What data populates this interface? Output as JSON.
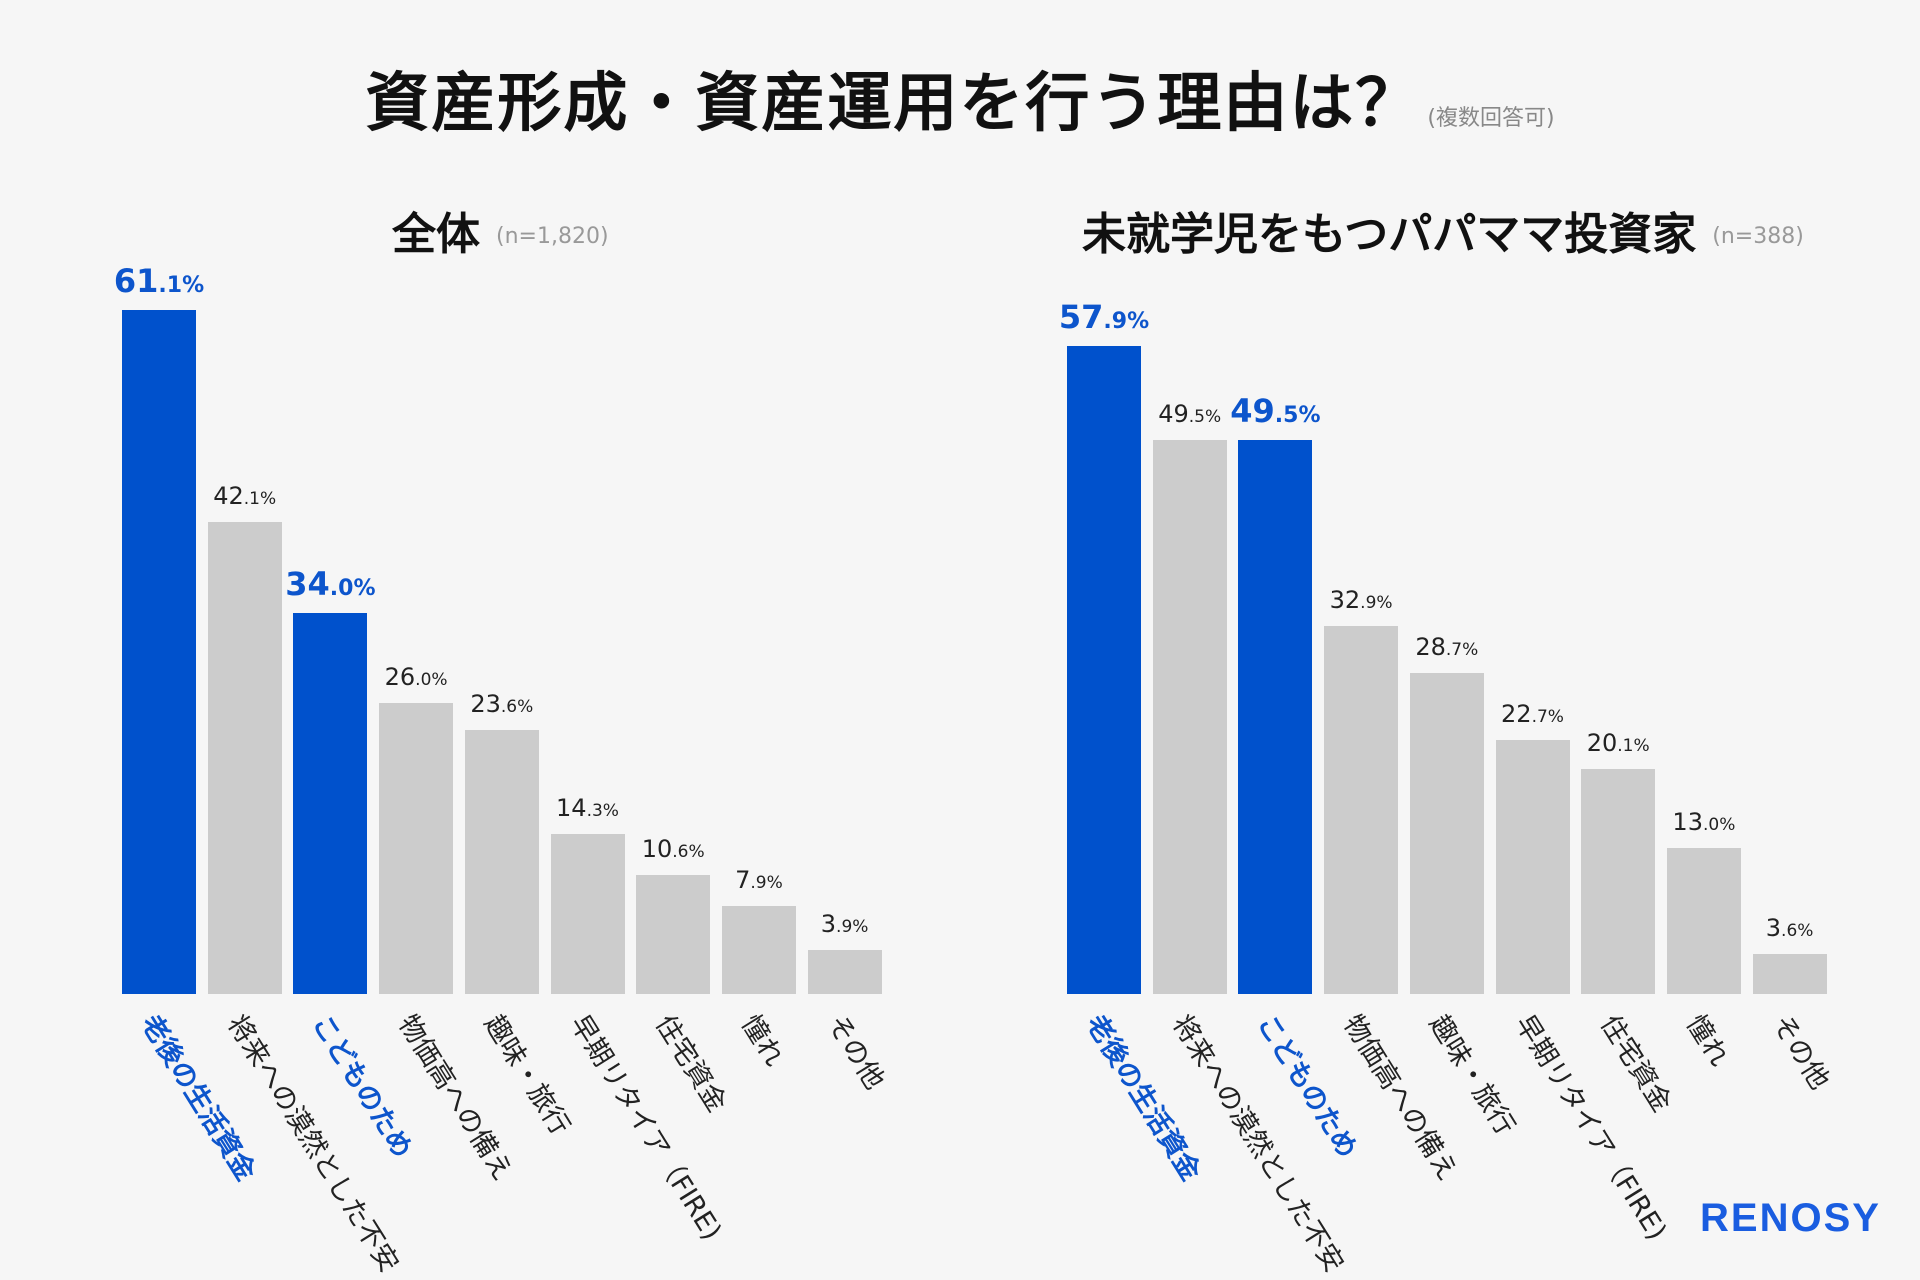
{
  "title": {
    "main": "資産形成・資産運用を行う理由は？",
    "note": "(複数回答可)"
  },
  "colors": {
    "highlight": "#0051cc",
    "normal": "#cccccc",
    "highlight_text": "#0d55cc"
  },
  "logo": "RENOSY",
  "chart_data": [
    {
      "type": "bar",
      "title": "全体",
      "subtitle": "(n=1,820)",
      "unit": "%",
      "categories": [
        "老後の生活資金",
        "将来への漠然とした不安",
        "こどものため",
        "物価高への備え",
        "趣味・旅行",
        "早期リタイア（FIRE)",
        "住宅資金",
        "憧れ",
        "その他"
      ],
      "values": [
        61.1,
        42.1,
        34.0,
        26.0,
        23.6,
        14.3,
        10.6,
        7.9,
        3.9
      ],
      "highlighted": [
        0,
        2
      ],
      "ylim": [
        0,
        70
      ],
      "grid": false
    },
    {
      "type": "bar",
      "title": "未就学児をもつパパママ投資家",
      "subtitle": "(n=388)",
      "unit": "%",
      "categories": [
        "老後の生活資金",
        "将来への漠然とした不安",
        "こどものため",
        "物価高への備え",
        "趣味・旅行",
        "早期リタイア（FIRE)",
        "住宅資金",
        "憧れ",
        "その他"
      ],
      "values": [
        57.9,
        49.5,
        49.5,
        32.9,
        28.7,
        22.7,
        20.1,
        13.0,
        3.6
      ],
      "highlighted": [
        0,
        2
      ],
      "ylim": [
        0,
        70
      ],
      "grid": false
    }
  ]
}
